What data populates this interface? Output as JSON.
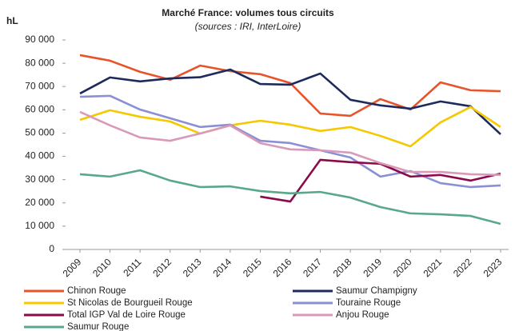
{
  "chart_data": {
    "type": "line",
    "title": "Marché France: volumes tous circuits",
    "subtitle": "(sources : IRI, InterLoire)",
    "y_label": "hL",
    "categories": [
      "2009",
      "2010",
      "2011",
      "2012",
      "2013",
      "2014",
      "2015",
      "2016",
      "2017",
      "2018",
      "2019",
      "2020",
      "2021",
      "2022",
      "2023"
    ],
    "ylim": [
      0,
      90000
    ],
    "yticks": [
      0,
      {
        "value": 10000,
        "label": "10 000"
      },
      {
        "value": 20000,
        "label": "20 000"
      },
      {
        "value": 30000,
        "label": "30 000"
      },
      {
        "value": 40000,
        "label": "40 000"
      },
      {
        "value": 50000,
        "label": "50 000"
      },
      {
        "value": 60000,
        "label": "60 000"
      },
      {
        "value": 70000,
        "label": "70 000"
      },
      {
        "value": 80000,
        "label": "80 000"
      },
      {
        "value": 90000,
        "label": "90 000"
      }
    ],
    "series": [
      {
        "name": "Chinon Rouge",
        "color": "#e8542a",
        "values": [
          83500,
          81100,
          76300,
          72900,
          79000,
          76600,
          75300,
          71500,
          58400,
          57400,
          64600,
          60100,
          71800,
          68400,
          68000
        ]
      },
      {
        "name": "Saumur Champigny",
        "color": "#1f2a5c",
        "values": [
          67000,
          73900,
          72200,
          73500,
          74000,
          77300,
          71100,
          70800,
          75600,
          64300,
          61900,
          60500,
          63600,
          61500,
          49500
        ]
      },
      {
        "name": "St Nicolas de Bourgueil Rouge",
        "color": "#f5c800",
        "values": [
          55700,
          59800,
          57000,
          55000,
          49800,
          53300,
          55300,
          53600,
          50900,
          52600,
          48800,
          44300,
          54600,
          61200,
          52600
        ]
      },
      {
        "name": "Touraine Rouge",
        "color": "#8a8fd6",
        "values": [
          65600,
          66000,
          60100,
          56400,
          52600,
          53600,
          46700,
          45700,
          42600,
          39500,
          31300,
          33700,
          28500,
          26800,
          27500
        ]
      },
      {
        "name": "Total IGP Val de Loire Rouge",
        "color": "#8b0a4a",
        "values": [
          null,
          null,
          null,
          null,
          null,
          null,
          22700,
          20600,
          38500,
          37500,
          36800,
          31300,
          32000,
          29600,
          32600
        ]
      },
      {
        "name": "Anjou Rouge",
        "color": "#d89ab8",
        "values": [
          59100,
          53300,
          48100,
          46700,
          49800,
          53300,
          45700,
          43000,
          42600,
          41600,
          37100,
          33300,
          33300,
          32300,
          32000
        ]
      },
      {
        "name": "Saumur Rouge",
        "color": "#5aa88a",
        "values": [
          32300,
          31300,
          34000,
          29600,
          26800,
          27100,
          25100,
          24100,
          24700,
          22300,
          18200,
          15500,
          15100,
          14400,
          11000
        ]
      }
    ]
  }
}
